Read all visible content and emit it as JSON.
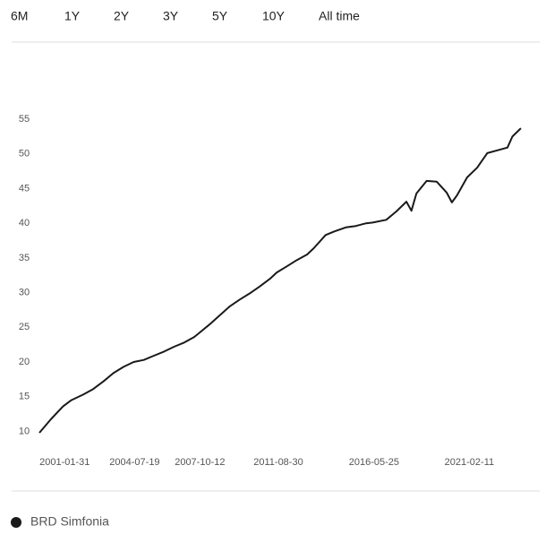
{
  "range_buttons": [
    "6M",
    "1Y",
    "2Y",
    "3Y",
    "5Y",
    "10Y",
    "All time"
  ],
  "chart_data": {
    "type": "line",
    "x": [
      "1999-11-01",
      "2000-06-01",
      "2001-01-01",
      "2001-06-01",
      "2002-01-01",
      "2002-07-01",
      "2003-01-01",
      "2003-07-01",
      "2004-01-01",
      "2004-07-01",
      "2005-01-01",
      "2005-07-01",
      "2006-01-01",
      "2006-07-01",
      "2007-01-01",
      "2007-07-01",
      "2007-10-01",
      "2008-04-01",
      "2008-10-01",
      "2009-04-01",
      "2009-10-01",
      "2010-04-01",
      "2010-10-01",
      "2011-04-01",
      "2011-08-01",
      "2012-02-01",
      "2012-08-01",
      "2013-02-01",
      "2013-06-01",
      "2014-01-01",
      "2014-06-01",
      "2015-01-01",
      "2015-07-01",
      "2016-01-01",
      "2016-05-01",
      "2017-01-01",
      "2017-07-01",
      "2018-01-01",
      "2018-04-01",
      "2018-07-01",
      "2019-01-01",
      "2019-07-01",
      "2020-01-01",
      "2020-04-01",
      "2020-07-01",
      "2021-01-01",
      "2021-07-01",
      "2022-01-01",
      "2022-07-01",
      "2023-01-01",
      "2023-04-01",
      "2023-09-01"
    ],
    "series": [
      {
        "name": "BRD Simfonia",
        "color": "#1a1a1a",
        "values": [
          9.8,
          11.8,
          13.6,
          14.5,
          15.3,
          16.1,
          17.2,
          18.4,
          19.3,
          20.0,
          20.3,
          20.9,
          21.5,
          22.2,
          22.8,
          23.6,
          24.2,
          25.4,
          26.7,
          28.0,
          29.0,
          29.9,
          30.9,
          32.0,
          32.9,
          33.8,
          34.7,
          35.5,
          36.4,
          38.3,
          38.8,
          39.4,
          39.6,
          40.0,
          40.1,
          40.5,
          41.7,
          43.1,
          41.8,
          44.3,
          46.1,
          46.0,
          44.4,
          43.0,
          44.0,
          46.6,
          48.0,
          50.1,
          50.5,
          50.9,
          52.5,
          53.7
        ]
      }
    ],
    "xlim": [
      "1999-11-01",
      "2023-09-01"
    ],
    "xticks": [
      "2001-01-31",
      "2004-07-19",
      "2007-10-12",
      "2011-08-30",
      "2016-05-25",
      "2021-02-11"
    ],
    "ylim": [
      9.8,
      55
    ],
    "yticks": [
      10,
      15,
      20,
      25,
      30,
      35,
      40,
      45,
      50,
      55
    ]
  }
}
